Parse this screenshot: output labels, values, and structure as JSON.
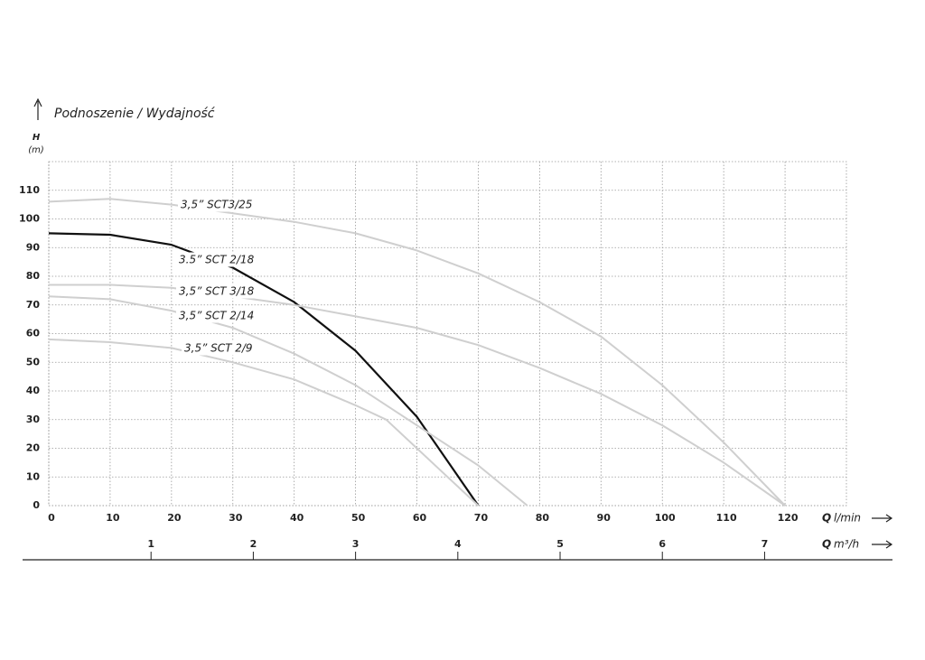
{
  "chart_data": {
    "type": "line",
    "title": "Podnoszenie / Wydajność",
    "y_label": {
      "symbol": "H",
      "unit": "(m)"
    },
    "x_label": {
      "symbol": "Q",
      "unit": "l/min"
    },
    "x2_label": {
      "symbol": "Q",
      "unit": "m³/h"
    },
    "xlim": [
      0,
      130
    ],
    "xticks": [
      0,
      10,
      20,
      30,
      40,
      50,
      60,
      70,
      80,
      90,
      100,
      110,
      120
    ],
    "x2lim": [
      0,
      7.8
    ],
    "x2ticks": [
      1,
      2,
      3,
      4,
      5,
      6,
      7
    ],
    "ylim": [
      0,
      120
    ],
    "yticks": [
      0,
      10,
      20,
      30,
      40,
      50,
      60,
      70,
      80,
      90,
      100,
      110
    ],
    "grid": true,
    "series": [
      {
        "name": "3,5” SCT3/25",
        "color": "#cfcfcf",
        "x": [
          0,
          10,
          20,
          30,
          40,
          50,
          60,
          70,
          80,
          90,
          100,
          110,
          120
        ],
        "values": [
          106,
          107,
          105,
          102,
          99,
          95,
          89,
          81,
          71,
          59,
          42,
          22,
          0
        ]
      },
      {
        "name": "3.5” SCT 2/18",
        "color": "#111111",
        "x": [
          0,
          10,
          20,
          30,
          40,
          50,
          60,
          70
        ],
        "values": [
          95,
          94.5,
          91,
          83,
          71,
          54,
          31,
          0
        ]
      },
      {
        "name": "3,5” SCT 3/18",
        "color": "#cfcfcf",
        "x": [
          0,
          10,
          20,
          30,
          40,
          50,
          60,
          70,
          80,
          90,
          100,
          110,
          120
        ],
        "values": [
          77,
          77,
          76,
          73,
          70,
          66,
          62,
          56,
          48,
          39,
          28,
          15,
          0
        ]
      },
      {
        "name": "3,5” SCT 2/14",
        "color": "#cfcfcf",
        "x": [
          0,
          10,
          20,
          30,
          40,
          50,
          60,
          70,
          78
        ],
        "values": [
          73,
          72,
          68,
          62,
          53,
          42,
          28,
          14,
          0
        ]
      },
      {
        "name": "3,5” SCT 2/9",
        "color": "#cfcfcf",
        "x": [
          0,
          10,
          20,
          30,
          40,
          50,
          55,
          60,
          65,
          70
        ],
        "values": [
          58,
          57,
          55,
          50,
          44,
          35,
          30,
          20,
          10,
          0
        ]
      }
    ]
  }
}
